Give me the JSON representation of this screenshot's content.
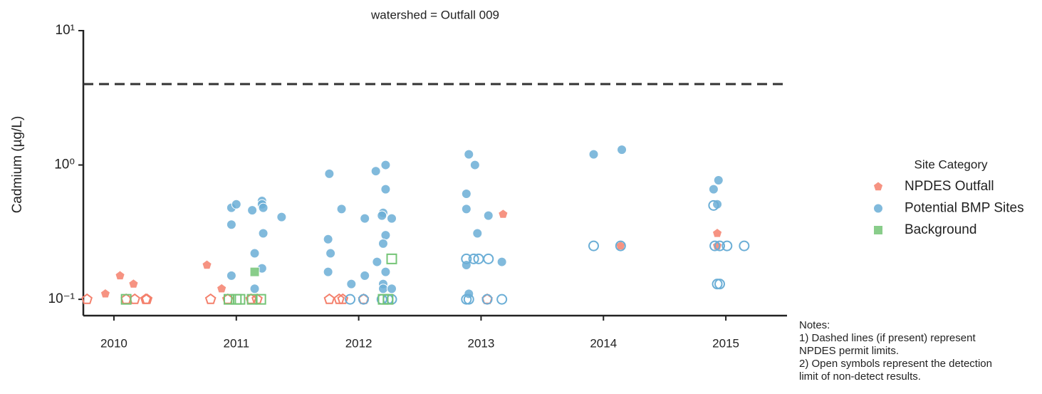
{
  "chart_data": {
    "type": "scatter",
    "title": "watershed = Outfall 009",
    "y_label": "Cadmium (µg/L)",
    "yscale": "log",
    "ylim": [
      0.0775,
      10
    ],
    "yticks": [
      {
        "value": 0.1,
        "label": "10⁻¹"
      },
      {
        "value": 1,
        "label": "10⁰"
      },
      {
        "value": 10,
        "label": "10¹"
      }
    ],
    "xlim": [
      2009.75,
      2015.5
    ],
    "xticks": [
      2010,
      2011,
      2012,
      2013,
      2014,
      2015
    ],
    "limit_line": 4,
    "legend_title": "Site Category",
    "legend_position": "right",
    "notes": [
      "Notes:",
      "1) Dashed lines (if present) represent",
      "NPDES permit limits.",
      "2) Open symbols represent the detection",
      "limit of non-detect results."
    ],
    "series": [
      {
        "name": "NPDES Outfall",
        "color": "#f4806c",
        "marker": "pentagon",
        "x": [
          2009.93,
          2010.05,
          2010.16,
          2010.76,
          2010.88,
          2013.18,
          2014.93,
          2014.93,
          2014.14,
          2009.78,
          2010.1,
          2010.17,
          2010.26,
          2010.27,
          2010.79,
          2010.93,
          2011.12,
          2011.17,
          2011.76,
          2011.84,
          2011.87,
          2012.04,
          2013.05
        ],
        "values": [
          0.11,
          0.15,
          0.13,
          0.18,
          0.12,
          0.43,
          0.25,
          0.31,
          0.25,
          0.1,
          0.1,
          0.1,
          0.1,
          0.1,
          0.1,
          0.1,
          0.1,
          0.1,
          0.1,
          0.1,
          0.1,
          0.1,
          0.1
        ],
        "open": [
          false,
          false,
          false,
          false,
          false,
          false,
          false,
          false,
          false,
          true,
          true,
          true,
          true,
          true,
          true,
          true,
          true,
          true,
          true,
          true,
          true,
          true,
          true
        ]
      },
      {
        "name": "Potential BMP Sites",
        "color": "#6baed6",
        "marker": "circle",
        "x": [
          2010.96,
          2011.0,
          2010.96,
          2010.96,
          2011.13,
          2011.21,
          2011.21,
          2011.22,
          2011.22,
          2011.15,
          2011.21,
          2011.15,
          2011.37,
          2011.76,
          2011.86,
          2011.75,
          2011.75,
          2011.77,
          2011.94,
          2012.05,
          2012.05,
          2012.14,
          2012.22,
          2012.22,
          2012.2,
          2012.19,
          2012.27,
          2012.22,
          2012.2,
          2012.15,
          2012.22,
          2012.2,
          2012.2,
          2012.27,
          2012.9,
          2012.95,
          2012.88,
          2012.88,
          2013.06,
          2012.97,
          2012.88,
          2012.9,
          2013.17,
          2013.92,
          2014.15,
          2014.9,
          2014.94,
          2014.93,
          2011.93,
          2012.04,
          2012.19,
          2012.24,
          2012.27,
          2012.88,
          2012.9,
          2013.05,
          2013.17,
          2012.88,
          2012.94,
          2012.98,
          2013.06,
          2013.92,
          2014.14,
          2014.91,
          2014.95,
          2015.01,
          2015.15,
          2014.93,
          2014.95,
          2014.9
        ],
        "values": [
          0.48,
          0.51,
          0.36,
          0.15,
          0.46,
          0.54,
          0.51,
          0.48,
          0.31,
          0.22,
          0.17,
          0.12,
          0.41,
          0.86,
          0.47,
          0.28,
          0.16,
          0.22,
          0.13,
          0.4,
          0.15,
          0.9,
          1.0,
          0.66,
          0.44,
          0.42,
          0.4,
          0.3,
          0.26,
          0.19,
          0.16,
          0.13,
          0.12,
          0.12,
          1.2,
          1.0,
          0.61,
          0.47,
          0.42,
          0.31,
          0.18,
          0.11,
          0.19,
          1.2,
          1.3,
          0.66,
          0.77,
          0.51,
          0.1,
          0.1,
          0.1,
          0.1,
          0.1,
          0.1,
          0.1,
          0.1,
          0.1,
          0.2,
          0.2,
          0.2,
          0.2,
          0.25,
          0.25,
          0.25,
          0.25,
          0.25,
          0.25,
          0.13,
          0.13,
          0.5
        ],
        "open": [
          false,
          false,
          false,
          false,
          false,
          false,
          false,
          false,
          false,
          false,
          false,
          false,
          false,
          false,
          false,
          false,
          false,
          false,
          false,
          false,
          false,
          false,
          false,
          false,
          false,
          false,
          false,
          false,
          false,
          false,
          false,
          false,
          false,
          false,
          false,
          false,
          false,
          false,
          false,
          false,
          false,
          false,
          false,
          false,
          false,
          false,
          false,
          false,
          true,
          true,
          true,
          true,
          true,
          true,
          true,
          true,
          true,
          true,
          true,
          true,
          true,
          true,
          true,
          true,
          true,
          true,
          true,
          true,
          true,
          true
        ]
      },
      {
        "name": "Background",
        "color": "#74c476",
        "marker": "square",
        "x": [
          2011.15,
          2010.1,
          2010.94,
          2011.0,
          2011.03,
          2011.13,
          2011.2,
          2012.2,
          2012.24,
          2012.27
        ],
        "values": [
          0.16,
          0.1,
          0.1,
          0.1,
          0.1,
          0.1,
          0.1,
          0.1,
          0.1,
          0.2
        ],
        "open": [
          false,
          true,
          true,
          true,
          true,
          true,
          true,
          true,
          true,
          true
        ]
      }
    ]
  }
}
